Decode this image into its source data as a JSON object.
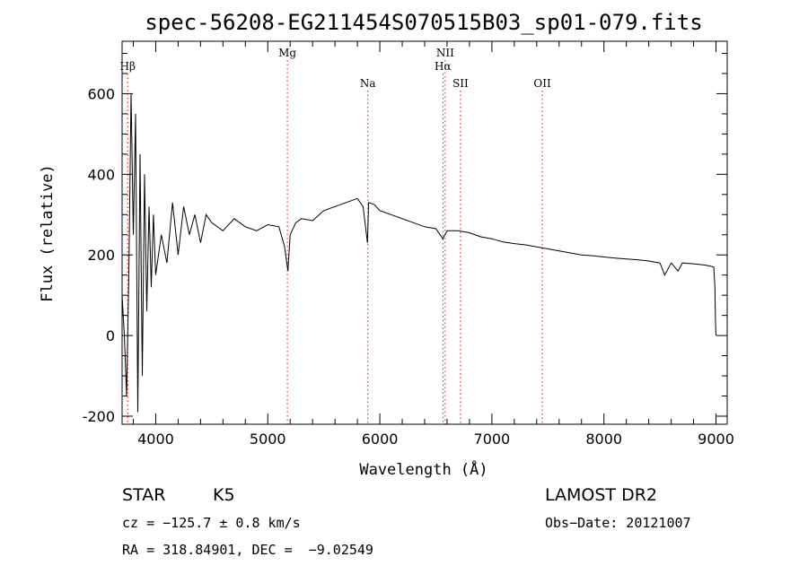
{
  "chart_data": {
    "type": "line",
    "title": "spec-56208-EG211454S070515B03_sp01-079.fits",
    "xlabel": "Wavelength (Å)",
    "ylabel": "Flux (relative)",
    "xlim": [
      3700,
      9100
    ],
    "ylim": [
      -220,
      730
    ],
    "x_ticks": [
      4000,
      5000,
      6000,
      7000,
      8000,
      9000
    ],
    "y_ticks": [
      -200,
      0,
      200,
      400,
      600
    ],
    "grid": false,
    "series": [
      {
        "x": [
          3700,
          3720,
          3740,
          3760,
          3780,
          3800,
          3820,
          3840,
          3860,
          3880,
          3900,
          3920,
          3940,
          3960,
          3980,
          4000,
          4050,
          4100,
          4150,
          4200,
          4250,
          4300,
          4350,
          4400,
          4450,
          4500,
          4600,
          4700,
          4800,
          4900,
          5000,
          5100,
          5150,
          5180,
          5200,
          5250,
          5300,
          5400,
          5500,
          5600,
          5700,
          5800,
          5850,
          5890,
          5900,
          5950,
          6000,
          6100,
          6200,
          6300,
          6400,
          6500,
          6563,
          6600,
          6700,
          6800,
          6900,
          7000,
          7100,
          7200,
          7300,
          7400,
          7500,
          7600,
          7700,
          7800,
          7900,
          8000,
          8100,
          8200,
          8300,
          8400,
          8500,
          8542,
          8600,
          8662,
          8700,
          8800,
          8900,
          8950,
          8980,
          8990,
          8995,
          9000
        ],
        "y": [
          100,
          0,
          -150,
          150,
          600,
          250,
          550,
          -190,
          450,
          -100,
          400,
          60,
          320,
          120,
          300,
          150,
          250,
          180,
          330,
          200,
          320,
          250,
          300,
          230,
          300,
          280,
          260,
          290,
          270,
          260,
          275,
          270,
          220,
          160,
          250,
          280,
          290,
          285,
          310,
          320,
          330,
          340,
          320,
          230,
          330,
          325,
          310,
          300,
          290,
          280,
          270,
          265,
          240,
          260,
          260,
          255,
          245,
          240,
          232,
          228,
          225,
          220,
          215,
          210,
          205,
          200,
          198,
          195,
          192,
          190,
          188,
          185,
          180,
          150,
          180,
          160,
          180,
          178,
          175,
          172,
          170,
          120,
          40,
          0
        ]
      }
    ],
    "lines": [
      {
        "label": "Hβ",
        "x": 3750,
        "row": 2
      },
      {
        "label": "Mg",
        "x": 5175,
        "row": 1
      },
      {
        "label": "Na",
        "x": 5893,
        "row": 3
      },
      {
        "label": "NII",
        "x": 6583,
        "row": 1
      },
      {
        "label": "Hα",
        "x": 6563,
        "row": 2
      },
      {
        "label": "SII",
        "x": 6720,
        "row": 3
      },
      {
        "label": "OII",
        "x": 7450,
        "row": 3
      }
    ],
    "line_color": "#000000",
    "marker_color": "#ff0000"
  },
  "info": {
    "class": "STAR",
    "subclass": "K5",
    "survey": "LAMOST DR2",
    "cz": "cz = −125.7 ± 0.8 km/s",
    "obs_date": "Obs−Date: 20121007",
    "coords": "RA = 318.84901, DEC =  −9.02549"
  }
}
